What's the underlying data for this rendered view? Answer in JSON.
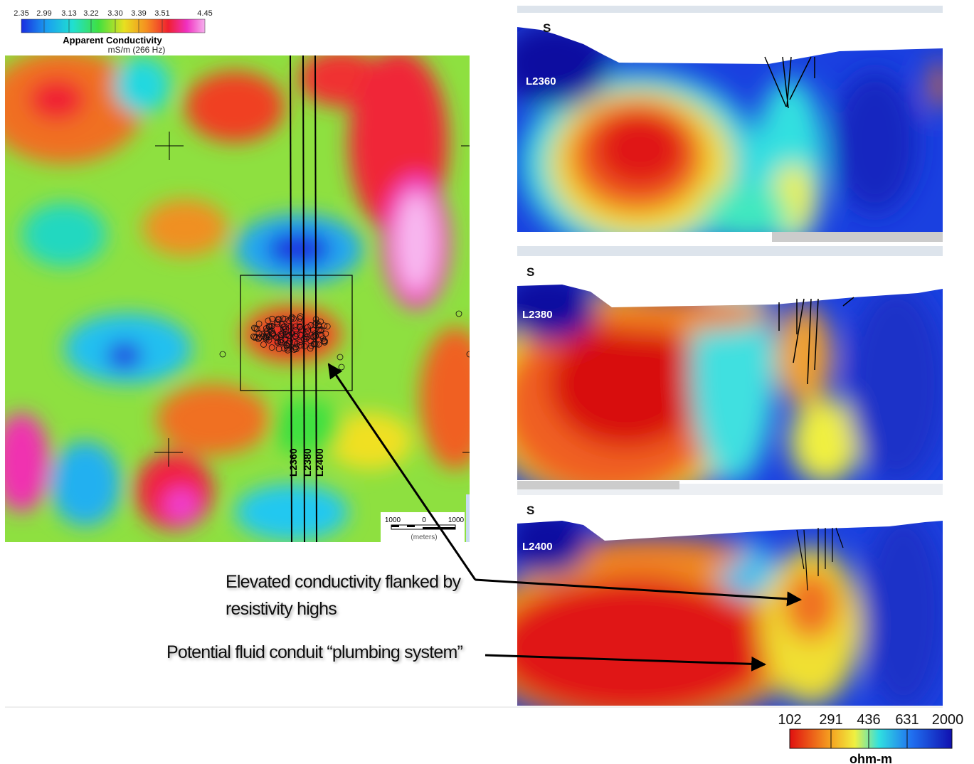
{
  "conductivity_bar": {
    "ticks": [
      "2.35",
      "2.99",
      "3.13",
      "3.22",
      "3.30",
      "3.39",
      "3.51",
      "4.45"
    ],
    "title": "Apparent Conductivity",
    "units": "mS/m  (266 Hz)"
  },
  "map": {
    "lines": [
      "L2360",
      "L2380",
      "L2400"
    ],
    "scale_bar": {
      "labels": [
        "1000",
        "0",
        "1000"
      ],
      "units": "(meters)"
    }
  },
  "sections": [
    {
      "marker": "S",
      "line": "L2360"
    },
    {
      "marker": "S",
      "line": "L2380"
    },
    {
      "marker": "S",
      "line": "L2400"
    }
  ],
  "annotations": [
    "Elevated conductivity flanked by",
    "resistivity highs",
    "Potential fluid conduit “plumbing system”"
  ],
  "resistivity_bar": {
    "ticks": [
      "102",
      "291",
      "436",
      "631",
      "2000"
    ],
    "units": "ohm-m"
  }
}
